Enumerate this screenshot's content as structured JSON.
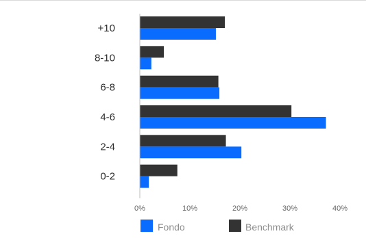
{
  "chart_data": {
    "type": "bar",
    "orientation": "horizontal",
    "categories": [
      "+10",
      "8-10",
      "6-8",
      "4-6",
      "2-4",
      "0-2"
    ],
    "series": [
      {
        "name": "Benchmark",
        "color": "#333333",
        "values": [
          17.0,
          4.8,
          15.7,
          30.3,
          17.2,
          7.5
        ]
      },
      {
        "name": "Fondo",
        "color": "#0a6cff",
        "values": [
          15.2,
          2.3,
          15.9,
          37.2,
          20.3,
          1.8
        ]
      }
    ],
    "x_ticks": [
      0,
      10,
      20,
      30,
      40
    ],
    "x_tick_labels": [
      "0%",
      "10%",
      "20%",
      "30%",
      "40%"
    ],
    "xlim": [
      0,
      40
    ],
    "legend": {
      "placement": "bottom",
      "order": [
        "Fondo",
        "Benchmark"
      ]
    },
    "grid": false
  }
}
